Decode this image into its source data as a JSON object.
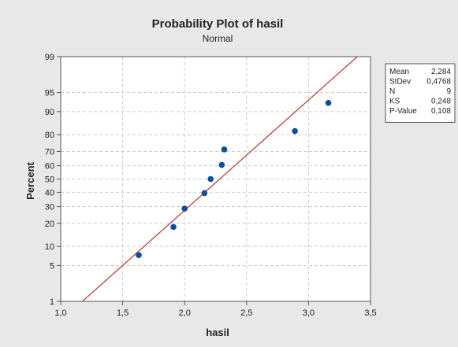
{
  "chart_data": {
    "type": "scatter",
    "title": "Probability Plot of hasil",
    "subtitle": "Normal",
    "xlabel": "hasil",
    "ylabel": "Percent",
    "xlim": [
      1.0,
      3.5
    ],
    "ylim_percent": [
      1,
      99
    ],
    "y_scale": "normal-probability",
    "grid": true,
    "x_ticks": [
      {
        "value": 1.0,
        "label": "1,0"
      },
      {
        "value": 1.5,
        "label": "1,5"
      },
      {
        "value": 2.0,
        "label": "2,0"
      },
      {
        "value": 2.5,
        "label": "2,5"
      },
      {
        "value": 3.0,
        "label": "3,0"
      },
      {
        "value": 3.5,
        "label": "3,5"
      }
    ],
    "y_ticks": [
      {
        "value": 1,
        "label": "1"
      },
      {
        "value": 5,
        "label": "5"
      },
      {
        "value": 10,
        "label": "10"
      },
      {
        "value": 20,
        "label": "20"
      },
      {
        "value": 30,
        "label": "30"
      },
      {
        "value": 40,
        "label": "40"
      },
      {
        "value": 50,
        "label": "50"
      },
      {
        "value": 60,
        "label": "60"
      },
      {
        "value": 70,
        "label": "70"
      },
      {
        "value": 80,
        "label": "80"
      },
      {
        "value": 90,
        "label": "90"
      },
      {
        "value": 95,
        "label": "95"
      },
      {
        "value": 99,
        "label": "99"
      }
    ],
    "points": [
      {
        "x": 1.63,
        "y": 7.4
      },
      {
        "x": 1.91,
        "y": 18.1
      },
      {
        "x": 2.0,
        "y": 28.7
      },
      {
        "x": 2.16,
        "y": 39.4
      },
      {
        "x": 2.21,
        "y": 50.0
      },
      {
        "x": 2.3,
        "y": 60.6
      },
      {
        "x": 2.32,
        "y": 71.3
      },
      {
        "x": 2.89,
        "y": 81.9
      },
      {
        "x": 3.16,
        "y": 92.6
      }
    ],
    "fit_line": {
      "mean": 2.284,
      "stdev": 0.4768
    },
    "colors": {
      "points": "#0b4f9c",
      "fit_line": "#b5453a",
      "plot_bg": "#ffffff",
      "panel_bg": "#e8e8e8",
      "grid": "#cccccc"
    },
    "legend_placement": "right",
    "stats": [
      {
        "label": "Mean",
        "value": "2,284"
      },
      {
        "label": "StDev",
        "value": "0,4768"
      },
      {
        "label": "N",
        "value": "9"
      },
      {
        "label": "KS",
        "value": "0,248"
      },
      {
        "label": "P-Value",
        "value": "0,108"
      }
    ]
  }
}
